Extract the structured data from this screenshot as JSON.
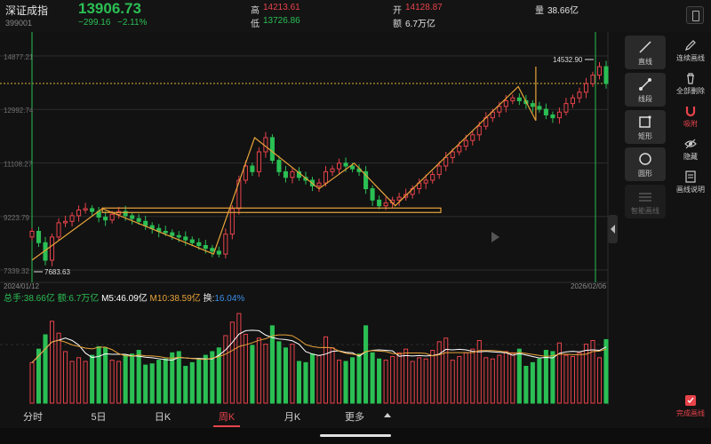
{
  "header": {
    "name": "深证成指",
    "code": "399001",
    "last_price": "13906.73",
    "change_abs": "−299.16",
    "change_pct": "−2.11%",
    "high_label": "高",
    "high_value": "14213.61",
    "low_label": "低",
    "low_value": "13726.86",
    "open_label": "开",
    "open_value": "14128.87",
    "amount_label": "额",
    "amount_value": "6.7万亿",
    "volume_label": "量",
    "volume_value": "38.66亿"
  },
  "chart": {
    "y_ticks": [
      "14877.21",
      "12992.74",
      "11108.27",
      "9223.79",
      "7339.32"
    ],
    "y_tick_values": [
      14877.21,
      12992.74,
      11108.27,
      9223.79,
      7339.32
    ],
    "ylim": [
      7339.32,
      14877.21
    ],
    "date_start": "2024/01/12",
    "date_end": "2026/02/06",
    "min_marker": "7683.63",
    "max_marker": "14532.90",
    "reference_price": 13906.73
  },
  "chart_data": {
    "type": "candlestick",
    "x_range": [
      "2024/01/12",
      "2026/02/06"
    ],
    "ylim": [
      7339.32,
      14877.21
    ],
    "annotations": [
      "7683.63",
      "14532.90"
    ],
    "close_path": [
      8700,
      8300,
      7683,
      8500,
      9000,
      9050,
      9250,
      9450,
      9500,
      9400,
      9200,
      9100,
      9300,
      9400,
      9250,
      9150,
      9050,
      8900,
      8800,
      8700,
      8650,
      8550,
      8500,
      8400,
      8300,
      8200,
      8100,
      8000,
      7900,
      8600,
      9500,
      10500,
      11000,
      10800,
      11500,
      12000,
      11200,
      10800,
      10600,
      10800,
      10600,
      10500,
      10300,
      10400,
      10800,
      10900,
      11100,
      11000,
      10900,
      10800,
      10200,
      9800,
      9600,
      9700,
      9800,
      9900,
      10000,
      10200,
      10400,
      10500,
      10700,
      11000,
      11300,
      11500,
      11700,
      11900,
      12100,
      12400,
      12700,
      12900,
      13100,
      13300,
      13400,
      13300,
      13200,
      13100,
      13000,
      12800,
      12700,
      12900,
      13200,
      13400,
      13600,
      13900,
      14200,
      14500,
      13906
    ]
  },
  "indicators": {
    "total_volume": "总手:38.66亿",
    "amount": "额:6.7万亿",
    "m5": "M5:46.09亿",
    "m10": "M10:38.59亿",
    "turnover_label": "换:",
    "turnover_value": "16.04%"
  },
  "tools": [
    {
      "label": "直线",
      "icon": "line-icon"
    },
    {
      "label": "线段",
      "icon": "segment-icon"
    },
    {
      "label": "矩形",
      "icon": "rectangle-icon"
    },
    {
      "label": "圆形",
      "icon": "circle-icon"
    },
    {
      "label": "智能画线",
      "icon": "smart-line-icon"
    }
  ],
  "side_actions": [
    {
      "label": "连续画线",
      "icon": "pencil-icon"
    },
    {
      "label": "全部删除",
      "icon": "trash-icon"
    },
    {
      "label": "吸附",
      "icon": "magnet-icon"
    },
    {
      "label": "隐藏",
      "icon": "eye-icon"
    },
    {
      "label": "画线说明",
      "icon": "help-doc-icon"
    },
    {
      "label": "完成画线",
      "icon": "finish-icon"
    }
  ],
  "tabs": [
    "分时",
    "5日",
    "日K",
    "周K",
    "月K",
    "更多"
  ],
  "active_tab": "周K",
  "colors": {
    "up": "#e8434b",
    "down": "#2bbf54",
    "drawing": "#e8a33a",
    "m5": "#ffffff",
    "m10": "#e8a33a",
    "background": "#121212"
  }
}
